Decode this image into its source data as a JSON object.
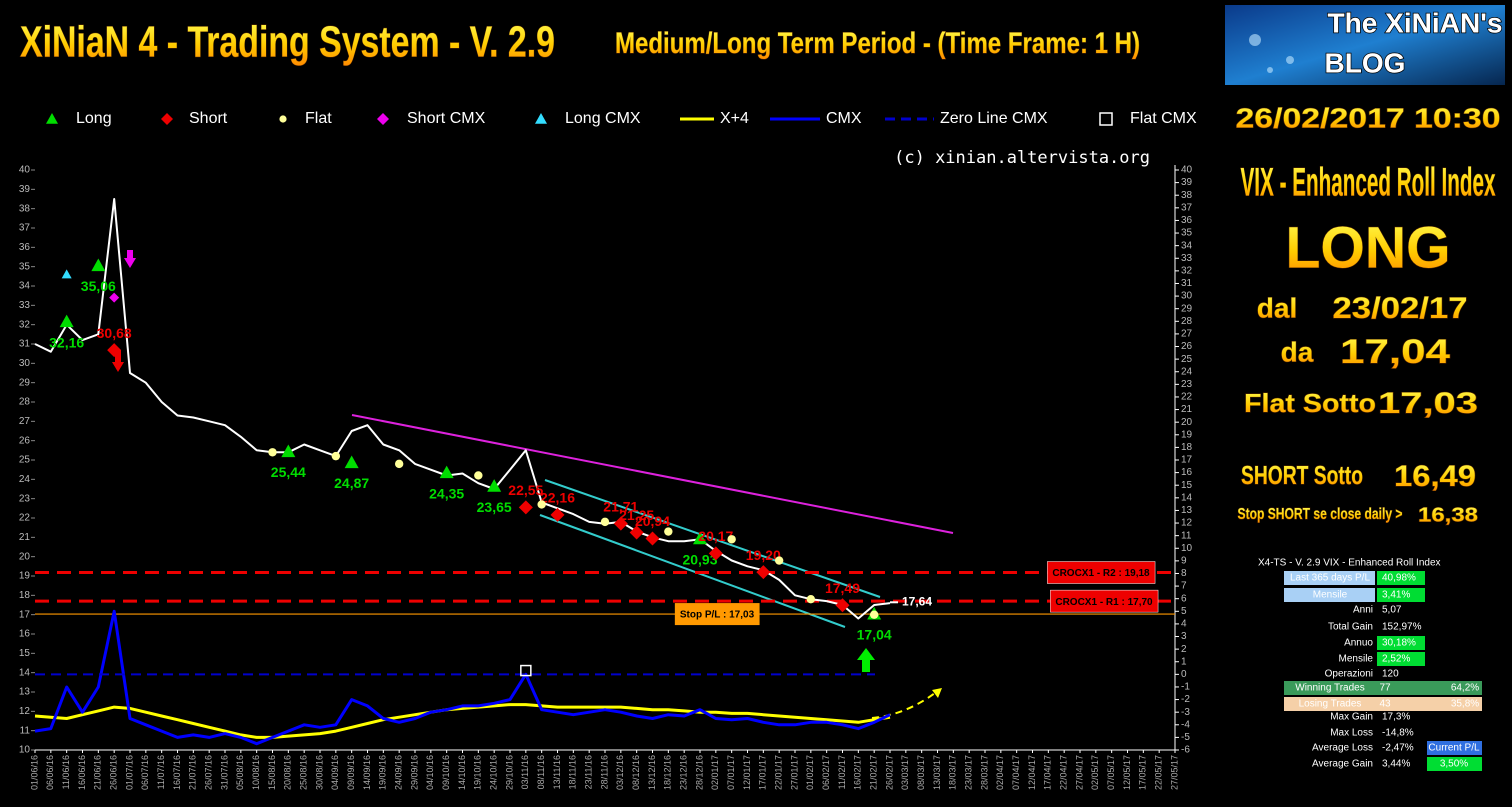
{
  "header": {
    "title": "XiNiaN 4 - Trading System - V. 2.9",
    "subtitle": "Medium/Long Term Period - (Time Frame: 1 H)",
    "copyright": "(c) xinian.altervista.org"
  },
  "chart_data": {
    "type": "line",
    "categories": [
      "01/06/16",
      "06/06/16",
      "11/06/16",
      "16/06/16",
      "21/06/16",
      "26/06/16",
      "01/07/16",
      "06/07/16",
      "11/07/16",
      "16/07/16",
      "21/07/16",
      "26/07/16",
      "31/07/16",
      "05/08/16",
      "10/08/16",
      "15/08/16",
      "20/08/16",
      "25/08/16",
      "30/08/16",
      "04/09/16",
      "09/09/16",
      "14/09/16",
      "19/09/16",
      "24/09/16",
      "29/09/16",
      "04/10/16",
      "09/10/16",
      "14/10/16",
      "19/10/16",
      "24/10/16",
      "29/10/16",
      "03/11/16",
      "08/11/16",
      "13/11/16",
      "18/11/16",
      "23/11/16",
      "28/11/16",
      "03/12/16",
      "08/12/16",
      "13/12/16",
      "18/12/16",
      "23/12/16",
      "28/12/16",
      "02/01/17",
      "07/01/17",
      "12/01/17",
      "17/01/17",
      "22/01/17",
      "27/01/17",
      "01/02/17",
      "06/02/17",
      "11/02/17",
      "16/02/17",
      "21/02/17",
      "26/02/17",
      "03/03/17",
      "08/03/17",
      "13/03/17",
      "18/03/17",
      "23/03/17",
      "28/03/17",
      "02/04/17",
      "07/04/17",
      "12/04/17",
      "17/04/17",
      "22/04/17",
      "27/04/17",
      "02/05/17",
      "07/05/17",
      "12/05/17",
      "17/05/17",
      "22/05/17",
      "27/05/17"
    ],
    "price": {
      "color": "#ffffff",
      "values": [
        31,
        30.6,
        32,
        31.2,
        31.5,
        38.5,
        29.5,
        29,
        28,
        27.3,
        27.2,
        27,
        26.8,
        26.2,
        25.5,
        25.4,
        25.4,
        25.8,
        25.5,
        25.2,
        26.5,
        26.8,
        25.8,
        25.5,
        24.8,
        24.5,
        24.2,
        24.3,
        23.8,
        23.5,
        24.5,
        25.5,
        22.8,
        22.5,
        22.2,
        21.8,
        21.7,
        21.8,
        21.3,
        21,
        20.8,
        20.8,
        20.9,
        20.3,
        19.8,
        19.5,
        19.3,
        18.8,
        18,
        17.8,
        17.7,
        17.5,
        16.8,
        17.5,
        17.6,
        null,
        null,
        null,
        null,
        null,
        null,
        null,
        null,
        null,
        null,
        null,
        null,
        null,
        null,
        null,
        null,
        null,
        null
      ]
    },
    "series": [
      {
        "name": "Long",
        "kind": "marker",
        "shape": "triangle",
        "color": "#00dd00",
        "x": [
          "11/06/16",
          "21/06/16",
          "20/08/16",
          "09/09/16",
          "09/10/16",
          "24/10/16",
          "28/12/16",
          "21/02/17"
        ],
        "values": [
          32.16,
          35.06,
          25.44,
          24.87,
          24.35,
          23.65,
          20.93,
          17.04
        ],
        "value_labels": [
          "32,16",
          "35,06",
          "25,44",
          "24,87",
          "24,35",
          "23,65",
          "20,93",
          "17,04"
        ]
      },
      {
        "name": "Short",
        "kind": "marker",
        "shape": "diamond",
        "color": "#ee0000",
        "x": [
          "26/06/16",
          "03/11/16",
          "13/11/16",
          "03/12/16",
          "08/12/16",
          "13/12/16",
          "02/01/17",
          "17/01/17",
          "11/02/17"
        ],
        "values": [
          30.68,
          22.55,
          22.16,
          21.71,
          21.25,
          20.94,
          20.17,
          19.2,
          17.49
        ],
        "value_labels": [
          "30,68",
          "22,55",
          "22,16",
          "21,71",
          "21,25",
          "20,94",
          "20,17",
          "19,20",
          "17,49"
        ]
      },
      {
        "name": "Flat",
        "kind": "marker",
        "shape": "circle",
        "color": "#ffff99",
        "x": [
          "15/08/16",
          "04/09/16",
          "24/09/16",
          "19/10/16",
          "08/11/16",
          "28/11/16",
          "18/12/16",
          "07/01/17",
          "22/01/17",
          "01/02/17",
          "21/02/17"
        ],
        "values": [
          25.4,
          25.2,
          24.8,
          24.2,
          22.7,
          21.8,
          21.3,
          20.9,
          19.8,
          17.8,
          17
        ]
      },
      {
        "name": "Short CMX",
        "kind": "marker",
        "shape": "diamond",
        "color": "#ee00ee",
        "x": [
          "26/06/16"
        ],
        "values": [
          33.4
        ]
      },
      {
        "name": "Long CMX",
        "kind": "marker",
        "shape": "triangle",
        "color": "#33ddff",
        "x": [
          "11/06/16"
        ],
        "values": [
          34.6
        ]
      },
      {
        "name": "X+4",
        "kind": "line",
        "color": "#ffff00",
        "axis": "y2",
        "values": [
          -3.3,
          -3.4,
          -3.5,
          -3.2,
          -2.9,
          -2.6,
          -2.7,
          -3,
          -3.3,
          -3.6,
          -3.9,
          -4.2,
          -4.5,
          -4.8,
          -5,
          -5,
          -4.9,
          -4.8,
          -4.7,
          -4.5,
          -4.2,
          -3.9,
          -3.6,
          -3.4,
          -3.2,
          -3,
          -2.8,
          -2.7,
          -2.6,
          -2.5,
          -2.4,
          -2.4,
          -2.5,
          -2.6,
          -2.6,
          -2.6,
          -2.6,
          -2.6,
          -2.7,
          -2.8,
          -2.8,
          -2.9,
          -3,
          -3,
          -3.1,
          -3.1,
          -3.2,
          -3.3,
          -3.4,
          -3.5,
          -3.6,
          -3.7,
          -3.8,
          -3.6,
          -3.4,
          null,
          null,
          null,
          null,
          null,
          null,
          null,
          null,
          null,
          null,
          null,
          null,
          null,
          null,
          null,
          null,
          null,
          null
        ]
      },
      {
        "name": "CMX",
        "kind": "line",
        "color": "#0000ff",
        "axis": "y2",
        "values": [
          -4.5,
          -4.3,
          -1,
          -3,
          -1,
          5,
          -3.5,
          -4,
          -4.5,
          -5,
          -4.8,
          -5,
          -4.7,
          -5,
          -5.5,
          -5,
          -4.5,
          -4,
          -4.2,
          -4,
          -2,
          -2.5,
          -3.5,
          -3.8,
          -3.5,
          -3,
          -2.8,
          -2.5,
          -2.5,
          -2.3,
          -2,
          0,
          -2.8,
          -3,
          -3.2,
          -3,
          -2.8,
          -3,
          -3.3,
          -3.5,
          -3.2,
          -3.3,
          -2.8,
          -3.5,
          -3.6,
          -3.5,
          -3.8,
          -4,
          -4,
          -3.8,
          -3.8,
          -4,
          -4.3,
          -3.8,
          -3.2,
          null,
          null,
          null,
          null,
          null,
          null,
          null,
          null,
          null,
          null,
          null,
          null,
          null,
          null,
          null,
          null,
          null,
          null
        ]
      },
      {
        "name": "Zero Line CMX",
        "kind": "hline",
        "color": "#0000cc",
        "axis": "y2",
        "value": 0
      },
      {
        "name": "Flat CMX",
        "kind": "marker",
        "shape": "square",
        "color": "#ffffff",
        "axis": "y2",
        "x": [
          "03/11/16"
        ],
        "values": [
          0.3
        ]
      }
    ],
    "levels": [
      {
        "value": 19.18,
        "label": "CROCX1 - R2 : 19,18",
        "color": "#ee0000",
        "dash": true
      },
      {
        "value": 17.7,
        "label": "CROCX1 - R1 : 17,70",
        "color": "#ee0000",
        "dash": true
      },
      {
        "value": 17.03,
        "label": "Stop P/L : 17,03",
        "color": "#ff9900",
        "dash": false
      }
    ],
    "last_price": {
      "x": "26/02/17",
      "value": 17.64,
      "label": "17,64"
    },
    "ylim": [
      10,
      40
    ],
    "yticks": [
      10,
      11,
      12,
      13,
      14,
      15,
      16,
      17,
      18,
      19,
      20,
      21,
      22,
      23,
      24,
      25,
      26,
      27,
      28,
      29,
      30,
      31,
      32,
      33,
      34,
      35,
      36,
      37,
      38,
      39,
      40
    ],
    "y2lim": [
      -6,
      40
    ],
    "y2ticks": [
      -6,
      -5,
      -4,
      -3,
      -2,
      -1,
      0,
      1,
      2,
      3,
      4,
      5,
      6,
      7,
      8,
      9,
      10,
      11,
      12,
      13,
      14,
      15,
      16,
      17,
      18,
      19,
      20,
      21,
      22,
      23,
      24,
      25,
      26,
      27,
      28,
      29,
      30,
      31,
      32,
      33,
      34,
      35,
      36,
      37,
      38,
      39,
      40
    ]
  },
  "panel": {
    "blog_line1": "The XiNiAN's",
    "blog_line2": "BLOG",
    "datetime": "26/02/2017 10:30",
    "instrument": "VIX - Enhanced Roll Index",
    "signal": "LONG",
    "since_label": "dal",
    "since_date": "23/02/17",
    "from_label": "da",
    "from_price": "17,04",
    "flat_label": "Flat Sotto",
    "flat_price": "17,03",
    "short_label": "SHORT Sotto",
    "short_price": "16,49",
    "stop_label": "Stop SHORT se close daily >",
    "stop_price": "16,38"
  },
  "stats": {
    "title": "X4-TS - V. 2.9 VIX - Enhanced Roll Index",
    "rows": [
      {
        "label": "Last 365 days P/L",
        "value": "40,98%"
      },
      {
        "label": "Mensile",
        "value": "3,41%"
      },
      {
        "label": "Anni",
        "value": "5,07"
      },
      {
        "label": "Total Gain",
        "value": "152,97%"
      },
      {
        "label": "Annuo",
        "value": "30,18%"
      },
      {
        "label": "Mensile",
        "value": "2,52%"
      },
      {
        "label": "Operazioni",
        "value": "120"
      },
      {
        "label": "Winning Trades",
        "value": "77",
        "extra": "64,2%"
      },
      {
        "label": "Losing Trades",
        "value": "43",
        "extra": "35,8%"
      },
      {
        "label": "Max Gain",
        "value": "17,3%"
      },
      {
        "label": "Max Loss",
        "value": "-14,8%"
      },
      {
        "label": "Average Loss",
        "value": "-2,47%",
        "extra": "Current P/L"
      },
      {
        "label": "Average Gain",
        "value": "3,44%",
        "extra": "3,50%"
      }
    ]
  }
}
